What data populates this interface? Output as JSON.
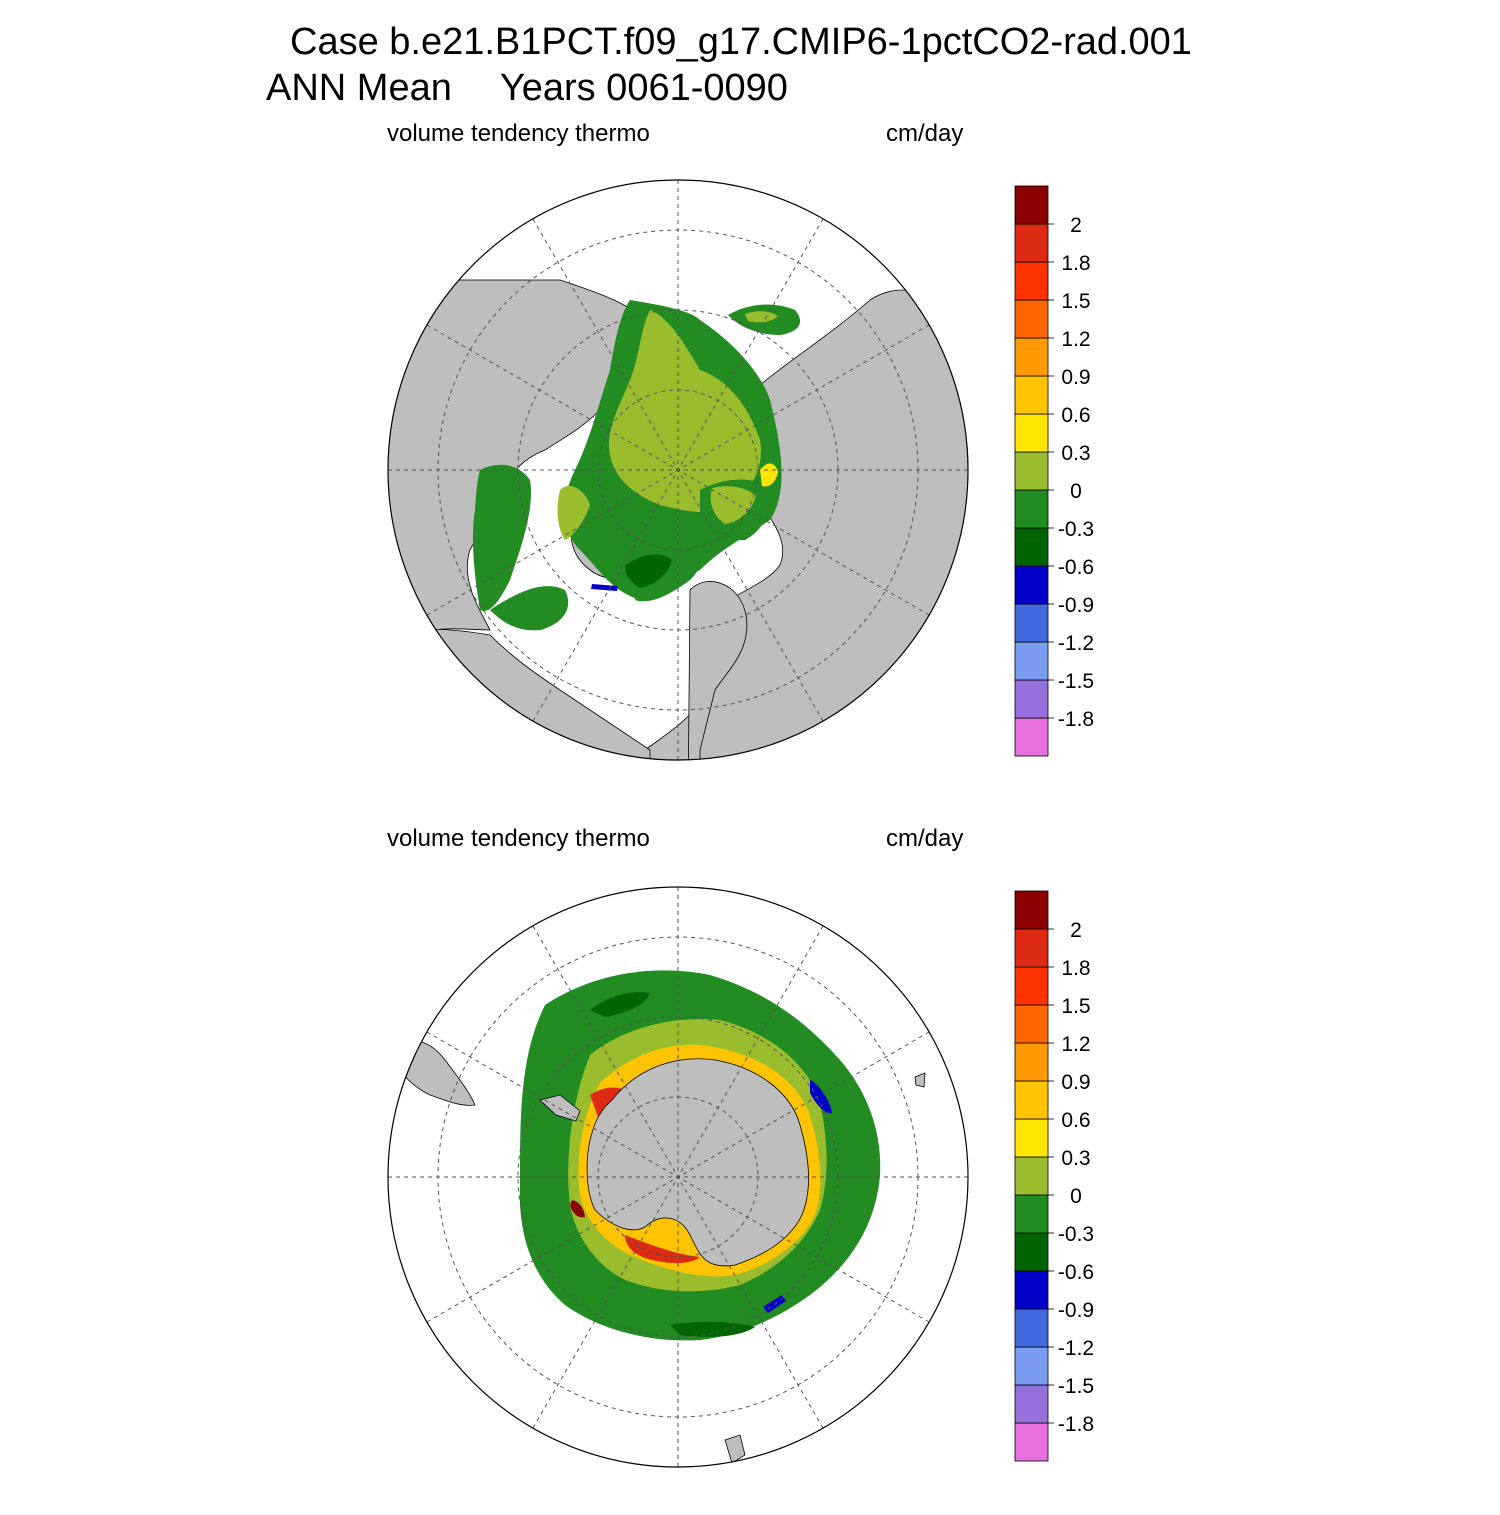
{
  "title": {
    "case": "Case b.e21.B1PCT.f09_g17.CMIP6-1pctCO2-rad.001",
    "season": "ANN Mean",
    "years": "Years 0061-0090"
  },
  "colors": {
    "land": "#bebebe",
    "background": "#ffffff",
    "outline": "#000000",
    "grid": "#555555"
  },
  "colorbar": {
    "colors": [
      "#e56fdc",
      "#9370db",
      "#7a9bf0",
      "#4169e1",
      "#0000c8",
      "#006400",
      "#228b22",
      "#9abd2e",
      "#ffe600",
      "#ffc400",
      "#ff9900",
      "#ff6600",
      "#ff3300",
      "#dd2b13",
      "#8b0000"
    ],
    "labels": [
      "-1.8",
      "-1.5",
      "-1.2",
      "-0.9",
      "-0.6",
      "-0.3",
      "0",
      "0.3",
      "0.6",
      "0.9",
      "1.2",
      "1.5",
      "1.8",
      "2"
    ]
  },
  "panels": [
    {
      "hemisphere": "NH",
      "variable": "volume tendency thermo",
      "units": "cm/day"
    },
    {
      "hemisphere": "SH",
      "variable": "volume tendency thermo",
      "units": "cm/day"
    }
  ]
}
